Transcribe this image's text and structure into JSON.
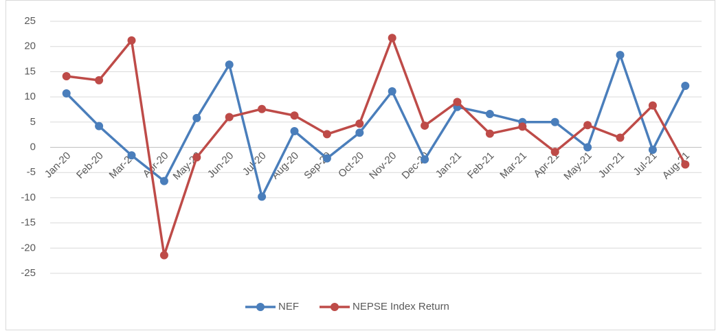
{
  "chart_data": {
    "type": "line",
    "categories": [
      "Jan-20",
      "Feb-20",
      "Mar-20",
      "Apr-20",
      "May-20",
      "Jun-20",
      "Jul-20",
      "Aug-20",
      "Sep-20",
      "Oct-20",
      "Nov-20",
      "Dec-20",
      "Jan-21",
      "Feb-21",
      "Mar-21",
      "Apr-21",
      "May-21",
      "Jun-21",
      "Jul-21",
      "Aug-21"
    ],
    "series": [
      {
        "name": "NEF",
        "color": "#4a7ebb",
        "values": [
          10.7,
          4.2,
          -1.6,
          -6.7,
          5.8,
          16.4,
          -9.8,
          3.2,
          -2.2,
          2.9,
          11.1,
          -2.4,
          8.0,
          6.6,
          5.0,
          5.0,
          0.0,
          18.3,
          -0.5,
          12.2
        ]
      },
      {
        "name": "NEPSE Index Return",
        "color": "#be4b48",
        "values": [
          14.1,
          13.3,
          21.2,
          -21.4,
          -2.0,
          6.0,
          7.6,
          6.3,
          2.6,
          4.7,
          21.7,
          4.3,
          9.0,
          2.7,
          4.1,
          -0.9,
          4.4,
          1.9,
          8.3,
          -3.4
        ]
      }
    ],
    "ylim": [
      -25,
      25
    ],
    "yticks": [
      25,
      20,
      15,
      10,
      5,
      0,
      -5,
      -10,
      -15,
      -20,
      -25
    ],
    "grid": true,
    "legend": "bottom"
  }
}
